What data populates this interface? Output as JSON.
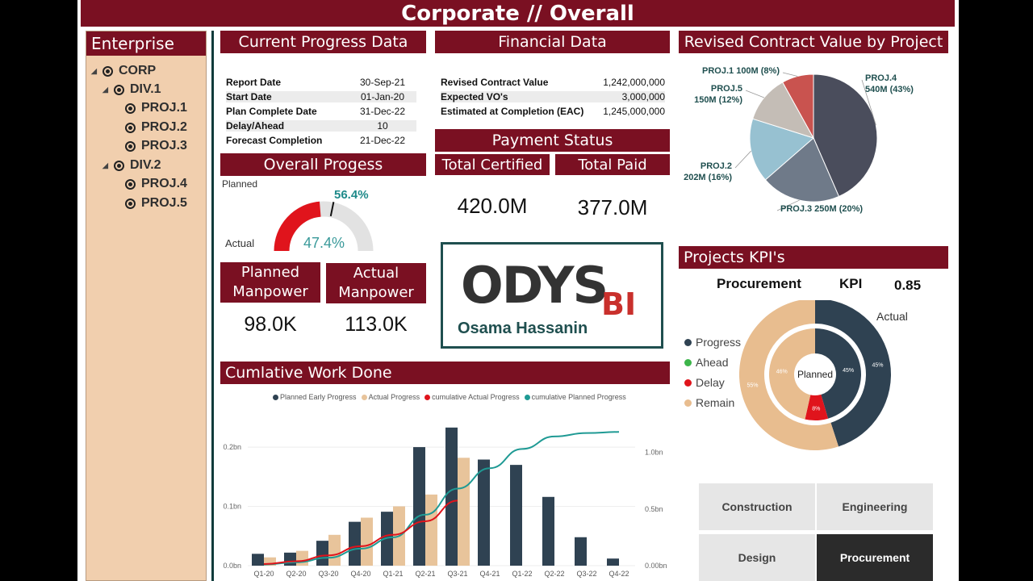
{
  "title": "Corporate // Overall",
  "sidebar": {
    "header": "Enterprise",
    "items": [
      {
        "label": "CORP"
      },
      {
        "label": "DIV.1"
      },
      {
        "label": "PROJ.1"
      },
      {
        "label": "PROJ.2"
      },
      {
        "label": "PROJ.3"
      },
      {
        "label": "DIV.2"
      },
      {
        "label": "PROJ.4"
      },
      {
        "label": "PROJ.5"
      }
    ]
  },
  "progress_data": {
    "header": "Current Progress Data",
    "rows": [
      {
        "label": "Report Date",
        "value": "30-Sep-21"
      },
      {
        "label": "Start Date",
        "value": "01-Jan-20"
      },
      {
        "label": "Plan Complete Date",
        "value": "31-Dec-22"
      },
      {
        "label": "Delay/Ahead",
        "value": "10"
      },
      {
        "label": "Forecast Completion",
        "value": "21-Dec-22"
      }
    ]
  },
  "financial": {
    "header": "Financial Data",
    "rows": [
      {
        "label": "Revised Contract Value",
        "value": "1,242,000,000"
      },
      {
        "label": "Expected VO's",
        "value": "3,000,000"
      },
      {
        "label": "Estimated at Completion (EAC)",
        "value": "1,245,000,000"
      }
    ]
  },
  "payment": {
    "header": "Payment Status",
    "certified_label": "Total Certified",
    "paid_label": "Total Paid",
    "certified_value": "420.0M",
    "paid_value": "377.0M"
  },
  "overall_progress": {
    "header": "Overall Progess",
    "planned_label": "Planned",
    "actual_label": "Actual",
    "planned_value": "56.4%",
    "actual_value": "47.4%",
    "planned_fraction": 0.564,
    "actual_fraction": 0.474
  },
  "manpower": {
    "planned_label_1": "Planned",
    "planned_label_2": "Manpower",
    "actual_label_1": "Actual",
    "actual_label_2": "Manpower",
    "planned_value": "98.0K",
    "actual_value": "113.0K"
  },
  "logo": {
    "brand": "ODYS",
    "suffix": "BI",
    "author": "Osama Hassanin"
  },
  "pie": {
    "header": "Revised Contract Value by Project",
    "slices": [
      {
        "name": "PROJ.4",
        "label": "PROJ.4",
        "detail": "540M (43%)",
        "value": 540,
        "color": "#4a4d5c"
      },
      {
        "name": "PROJ.3",
        "label": "PROJ.3 250M (20%)",
        "detail": "",
        "value": 250,
        "color": "#6f7a89"
      },
      {
        "name": "PROJ.2",
        "label": "PROJ.2",
        "detail": "202M (16%)",
        "value": 202,
        "color": "#97c1d1"
      },
      {
        "name": "PROJ.5",
        "label": "PROJ.5",
        "detail": "150M (12%)",
        "value": 150,
        "color": "#c4bdb6"
      },
      {
        "name": "PROJ.1",
        "label": "PROJ.1 100M (8%)",
        "detail": "",
        "value": 100,
        "color": "#c9534f"
      }
    ]
  },
  "kpi": {
    "header": "Projects KPI's",
    "category": "Procurement",
    "kpi_label": "KPI",
    "kpi_value": "0.85",
    "actual_label": "Actual",
    "center_label": "Planned",
    "legend": [
      {
        "label": "Progress",
        "color": "#2f4252"
      },
      {
        "label": "Ahead",
        "color": "#3cb54a"
      },
      {
        "label": "Delay",
        "color": "#e0141c"
      },
      {
        "label": "Remain",
        "color": "#e8bd8f"
      }
    ],
    "outer": {
      "progress": 45,
      "remain": 55,
      "progress_label": "45%",
      "remain_label": "55%"
    },
    "inner": {
      "progress": 45,
      "delay": 8,
      "remain": 46,
      "progress_label": "45%",
      "delay_label": "8%",
      "remain_label": "46%"
    }
  },
  "slicers": [
    {
      "label": "Construction",
      "active": false
    },
    {
      "label": "Engineering",
      "active": false
    },
    {
      "label": "Design",
      "active": false
    },
    {
      "label": "Procurement",
      "active": true
    }
  ],
  "chart_data": {
    "type": "bar",
    "title": "Cumlative Work Done",
    "categories": [
      "Q1-20",
      "Q2-20",
      "Q3-20",
      "Q4-20",
      "Q1-21",
      "Q2-21",
      "Q3-21",
      "Q4-21",
      "Q1-22",
      "Q2-22",
      "Q3-22",
      "Q4-22"
    ],
    "series": [
      {
        "name": "Planned Early Progress",
        "kind": "bar",
        "axis": "left",
        "color": "#2f4252",
        "values": [
          0.02,
          0.022,
          0.042,
          0.074,
          0.091,
          0.2,
          0.233,
          0.179,
          0.17,
          0.116,
          0.048,
          0.012
        ]
      },
      {
        "name": "Actual Progress",
        "kind": "bar",
        "axis": "left",
        "color": "#e8c49b",
        "values": [
          0.014,
          0.025,
          0.052,
          0.081,
          0.1,
          0.12,
          0.182,
          null,
          null,
          null,
          null,
          null
        ]
      },
      {
        "name": "cumulative Actual Progress",
        "kind": "line",
        "axis": "right",
        "color": "#e0141c",
        "values": [
          0.014,
          0.039,
          0.091,
          0.172,
          0.272,
          0.392,
          0.574,
          null,
          null,
          null,
          null,
          null
        ]
      },
      {
        "name": "cumulative Planned Progress",
        "kind": "line",
        "axis": "right",
        "color": "#1f9a94",
        "values": [
          0.01,
          0.03,
          0.07,
          0.15,
          0.25,
          0.45,
          0.68,
          0.86,
          1.03,
          1.14,
          1.17,
          1.18
        ]
      }
    ],
    "left_axis": {
      "ticks": [
        "0.0bn",
        "0.1bn",
        "0.2bn"
      ],
      "ylim": [
        0,
        0.26
      ]
    },
    "right_axis": {
      "ticks": [
        "0.00bn",
        "0.5bn",
        "1.0bn"
      ],
      "ylim": [
        0,
        1.36
      ]
    }
  }
}
